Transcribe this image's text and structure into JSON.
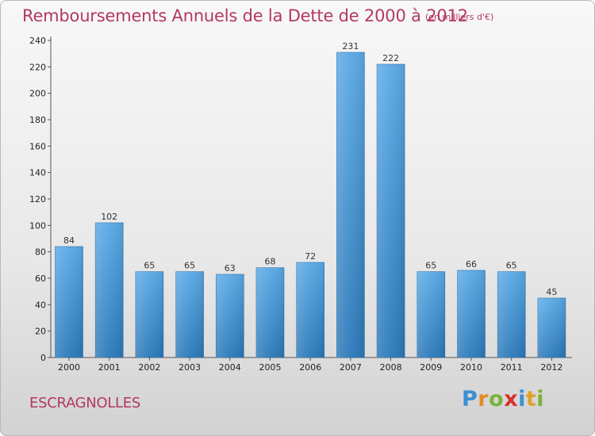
{
  "header": {
    "title": "Remboursements Annuels de la Dette de 2000 à 2012",
    "subtitle": "(en milliers d'€)"
  },
  "footer": {
    "commune": "ESCRAGNOLLES",
    "logo_text": "Proxiti"
  },
  "colors": {
    "title": "#b3395f",
    "bar_light": "#5aa9e6",
    "bar_dark": "#2a78b8"
  },
  "chart_data": {
    "type": "bar",
    "title": "Remboursements Annuels de la Dette de 2000 à 2012",
    "subtitle": "(en milliers d'€)",
    "categories": [
      "2000",
      "2001",
      "2002",
      "2003",
      "2004",
      "2005",
      "2006",
      "2007",
      "2008",
      "2009",
      "2010",
      "2011",
      "2012"
    ],
    "values": [
      84,
      102,
      65,
      65,
      63,
      68,
      72,
      231,
      222,
      65,
      66,
      65,
      45
    ],
    "ylim": [
      0,
      240
    ],
    "yticks": [
      0,
      20,
      40,
      60,
      80,
      100,
      120,
      140,
      160,
      180,
      200,
      220,
      240
    ],
    "grid": false,
    "legend": "none",
    "xlabel": "",
    "ylabel": ""
  }
}
